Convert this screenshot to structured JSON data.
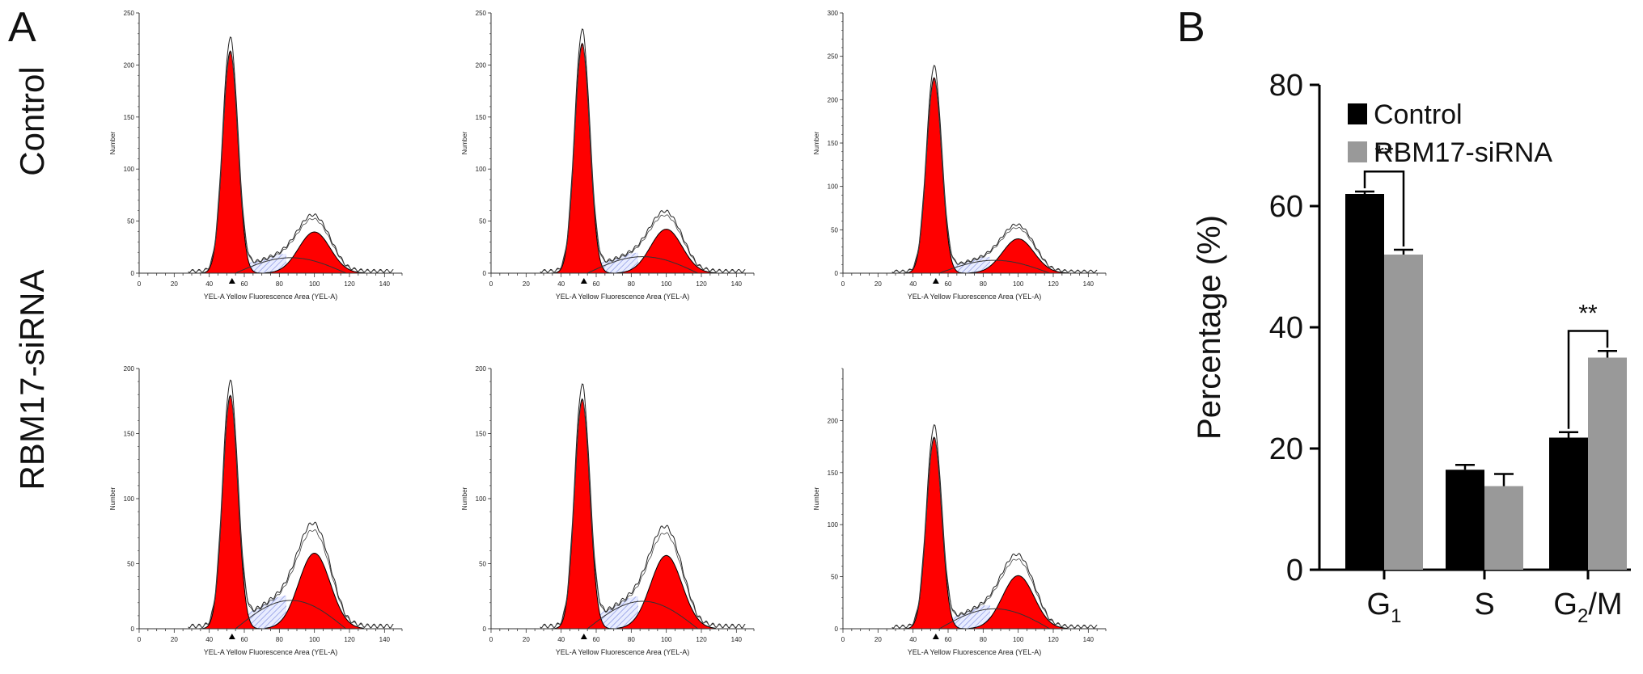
{
  "panels": {
    "a_letter": "A",
    "b_letter": "B"
  },
  "row_labels": [
    "Control",
    "RBM17-siRNA"
  ],
  "histograms": {
    "x_label": "YEL-A Yellow Fluorescence Area (YEL-A)",
    "y_label": "Number",
    "x_ticks": [
      "0",
      "20",
      "40",
      "60",
      "80",
      "100",
      "120",
      "140"
    ],
    "plots": [
      {
        "row": 0,
        "col": 0,
        "y_ticks": [
          "0",
          "50",
          "100",
          "150",
          "200",
          "250"
        ],
        "y_max": 250,
        "g1_peak": 232,
        "g2_peak": 45
      },
      {
        "row": 0,
        "col": 1,
        "y_ticks": [
          "0",
          "50",
          "100",
          "150",
          "200",
          "250"
        ],
        "y_max": 250,
        "g1_peak": 240,
        "g2_peak": 48
      },
      {
        "row": 0,
        "col": 2,
        "y_ticks": [
          "0",
          "50",
          "100",
          "150",
          "200",
          "250",
          "300"
        ],
        "y_max": 300,
        "g1_peak": 245,
        "g2_peak": 45
      },
      {
        "row": 1,
        "col": 0,
        "y_ticks": [
          "0",
          "50",
          "100",
          "150",
          "200"
        ],
        "y_max": 200,
        "g1_peak": 195,
        "g2_peak": 66
      },
      {
        "row": 1,
        "col": 1,
        "y_ticks": [
          "0",
          "50",
          "100",
          "150",
          "200"
        ],
        "y_max": 200,
        "g1_peak": 192,
        "g2_peak": 64
      },
      {
        "row": 1,
        "col": 2,
        "y_ticks": [
          "0",
          "50",
          "100",
          "150",
          "200"
        ],
        "y_max": 250,
        "g1_peak": 200,
        "g2_peak": 58
      }
    ]
  },
  "chart_data": {
    "type": "bar",
    "categories": [
      "G1",
      "S",
      "G2/M"
    ],
    "category_labels": [
      {
        "base": "G",
        "sub": "1"
      },
      {
        "base": "S",
        "sub": ""
      },
      {
        "base": "G",
        "sub": "2",
        "suffix": "/M"
      }
    ],
    "series": [
      {
        "name": "Control",
        "values": [
          62,
          16.5,
          21.8
        ],
        "errors": [
          0.4,
          0.8,
          0.9
        ],
        "color": "#000000"
      },
      {
        "name": "RBM17-siRNA",
        "values": [
          52,
          13.8,
          35
        ],
        "errors": [
          0.8,
          2.0,
          1.1
        ],
        "color": "#999999"
      }
    ],
    "ylabel": "Percentage (%)",
    "ylim": [
      0,
      80
    ],
    "y_ticks": [
      "0",
      "20",
      "40",
      "60",
      "80"
    ],
    "annotations": [
      {
        "category": "G1",
        "text": "**"
      },
      {
        "category": "G2/M",
        "text": "**"
      }
    ],
    "legend_position": "top-left"
  }
}
